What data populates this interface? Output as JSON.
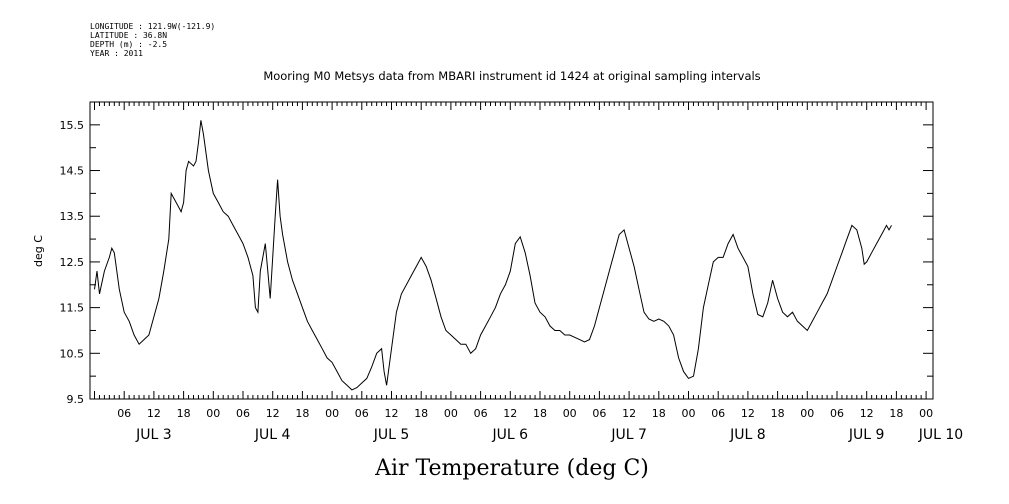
{
  "metadata": {
    "longitude": "LONGITUDE : 121.9W(-121.9)",
    "latitude": "LATITUDE : 36.8N",
    "depth": "DEPTH (m) : -2.5",
    "year": "YEAR : 2011"
  },
  "chart_data": {
    "type": "line",
    "title": "Mooring M0 Metsys data from MBARI instrument id 1424 at original sampling intervals",
    "xlabel": "Air Temperature (deg C)",
    "ylabel": "deg C",
    "ylim": [
      9.5,
      16.0
    ],
    "xlim_hours": [
      0,
      168
    ],
    "y_ticks": [
      "9.5",
      "10.5",
      "11.5",
      "12.5",
      "13.5",
      "14.5",
      "15.5"
    ],
    "x_hour_ticks": [
      {
        "h": 6,
        "label": "06"
      },
      {
        "h": 12,
        "label": "12"
      },
      {
        "h": 18,
        "label": "18"
      },
      {
        "h": 24,
        "label": "00"
      },
      {
        "h": 30,
        "label": "06"
      },
      {
        "h": 36,
        "label": "12"
      },
      {
        "h": 42,
        "label": "18"
      },
      {
        "h": 48,
        "label": "00"
      },
      {
        "h": 54,
        "label": "06"
      },
      {
        "h": 60,
        "label": "12"
      },
      {
        "h": 66,
        "label": "18"
      },
      {
        "h": 72,
        "label": "00"
      },
      {
        "h": 78,
        "label": "06"
      },
      {
        "h": 84,
        "label": "12"
      },
      {
        "h": 90,
        "label": "18"
      },
      {
        "h": 96,
        "label": "00"
      },
      {
        "h": 102,
        "label": "06"
      },
      {
        "h": 108,
        "label": "12"
      },
      {
        "h": 114,
        "label": "18"
      },
      {
        "h": 120,
        "label": "00"
      },
      {
        "h": 126,
        "label": "06"
      },
      {
        "h": 132,
        "label": "12"
      },
      {
        "h": 138,
        "label": "18"
      },
      {
        "h": 144,
        "label": "00"
      },
      {
        "h": 150,
        "label": "06"
      },
      {
        "h": 156,
        "label": "12"
      },
      {
        "h": 162,
        "label": "18"
      },
      {
        "h": 168,
        "label": "00"
      }
    ],
    "day_labels": [
      {
        "h": 12,
        "label": "JUL  3"
      },
      {
        "h": 36,
        "label": "JUL  4"
      },
      {
        "h": 60,
        "label": "JUL  5"
      },
      {
        "h": 84,
        "label": "JUL  6"
      },
      {
        "h": 108,
        "label": "JUL  7"
      },
      {
        "h": 132,
        "label": "JUL  8"
      },
      {
        "h": 156,
        "label": "JUL  9"
      },
      {
        "h": 171,
        "label": "JUL 10"
      }
    ],
    "series": [
      {
        "name": "Air Temperature",
        "points": [
          [
            0.0,
            11.9
          ],
          [
            0.5,
            12.3
          ],
          [
            1.0,
            11.8
          ],
          [
            2.0,
            12.3
          ],
          [
            3.0,
            12.6
          ],
          [
            3.5,
            12.8
          ],
          [
            4.0,
            12.7
          ],
          [
            5.0,
            11.9
          ],
          [
            6.0,
            11.4
          ],
          [
            7.0,
            11.2
          ],
          [
            8.0,
            10.9
          ],
          [
            9.0,
            10.7
          ],
          [
            10.0,
            10.8
          ],
          [
            11.0,
            10.9
          ],
          [
            12.0,
            11.3
          ],
          [
            13.0,
            11.7
          ],
          [
            14.0,
            12.3
          ],
          [
            15.0,
            13.0
          ],
          [
            15.5,
            14.0
          ],
          [
            16.0,
            13.9
          ],
          [
            17.0,
            13.7
          ],
          [
            17.5,
            13.6
          ],
          [
            18.0,
            13.8
          ],
          [
            18.5,
            14.5
          ],
          [
            19.0,
            14.7
          ],
          [
            20.0,
            14.6
          ],
          [
            20.5,
            14.7
          ],
          [
            21.0,
            15.1
          ],
          [
            21.5,
            15.6
          ],
          [
            22.0,
            15.3
          ],
          [
            23.0,
            14.5
          ],
          [
            24.0,
            14.0
          ],
          [
            25.0,
            13.8
          ],
          [
            26.0,
            13.6
          ],
          [
            27.0,
            13.5
          ],
          [
            28.0,
            13.3
          ],
          [
            29.0,
            13.1
          ],
          [
            30.0,
            12.9
          ],
          [
            31.0,
            12.6
          ],
          [
            32.0,
            12.2
          ],
          [
            32.5,
            11.5
          ],
          [
            33.0,
            11.4
          ],
          [
            33.5,
            12.3
          ],
          [
            34.0,
            12.6
          ],
          [
            34.5,
            12.9
          ],
          [
            35.0,
            12.3
          ],
          [
            35.5,
            11.7
          ],
          [
            36.0,
            12.6
          ],
          [
            36.5,
            13.5
          ],
          [
            37.0,
            14.3
          ],
          [
            37.5,
            13.5
          ],
          [
            38.0,
            13.1
          ],
          [
            39.0,
            12.5
          ],
          [
            40.0,
            12.1
          ],
          [
            41.0,
            11.8
          ],
          [
            42.0,
            11.5
          ],
          [
            43.0,
            11.2
          ],
          [
            44.0,
            11.0
          ],
          [
            45.0,
            10.8
          ],
          [
            46.0,
            10.6
          ],
          [
            47.0,
            10.4
          ],
          [
            48.0,
            10.3
          ],
          [
            49.0,
            10.1
          ],
          [
            50.0,
            9.9
          ],
          [
            51.0,
            9.8
          ],
          [
            52.0,
            9.7
          ],
          [
            53.0,
            9.75
          ],
          [
            54.0,
            9.85
          ],
          [
            55.0,
            9.95
          ],
          [
            56.0,
            10.2
          ],
          [
            57.0,
            10.5
          ],
          [
            58.0,
            10.6
          ],
          [
            58.5,
            10.1
          ],
          [
            59.0,
            9.8
          ],
          [
            60.0,
            10.6
          ],
          [
            61.0,
            11.4
          ],
          [
            62.0,
            11.8
          ],
          [
            63.0,
            12.0
          ],
          [
            64.0,
            12.2
          ],
          [
            65.0,
            12.4
          ],
          [
            66.0,
            12.6
          ],
          [
            67.0,
            12.4
          ],
          [
            68.0,
            12.1
          ],
          [
            69.0,
            11.7
          ],
          [
            70.0,
            11.3
          ],
          [
            71.0,
            11.0
          ],
          [
            72.0,
            10.9
          ],
          [
            73.0,
            10.8
          ],
          [
            74.0,
            10.7
          ],
          [
            75.0,
            10.7
          ],
          [
            76.0,
            10.5
          ],
          [
            77.0,
            10.6
          ],
          [
            78.0,
            10.9
          ],
          [
            79.0,
            11.1
          ],
          [
            80.0,
            11.3
          ],
          [
            81.0,
            11.5
          ],
          [
            82.0,
            11.8
          ],
          [
            83.0,
            12.0
          ],
          [
            84.0,
            12.3
          ],
          [
            85.0,
            12.9
          ],
          [
            86.0,
            13.05
          ],
          [
            87.0,
            12.7
          ],
          [
            88.0,
            12.2
          ],
          [
            89.0,
            11.6
          ],
          [
            90.0,
            11.4
          ],
          [
            91.0,
            11.3
          ],
          [
            92.0,
            11.1
          ],
          [
            93.0,
            11.0
          ],
          [
            94.0,
            11.0
          ],
          [
            95.0,
            10.9
          ],
          [
            96.0,
            10.9
          ],
          [
            97.0,
            10.85
          ],
          [
            98.0,
            10.8
          ],
          [
            99.0,
            10.75
          ],
          [
            100.0,
            10.8
          ],
          [
            101.0,
            11.1
          ],
          [
            102.0,
            11.5
          ],
          [
            103.0,
            11.9
          ],
          [
            104.0,
            12.3
          ],
          [
            105.0,
            12.7
          ],
          [
            106.0,
            13.1
          ],
          [
            107.0,
            13.2
          ],
          [
            108.0,
            12.8
          ],
          [
            109.0,
            12.4
          ],
          [
            110.0,
            11.9
          ],
          [
            111.0,
            11.4
          ],
          [
            112.0,
            11.25
          ],
          [
            113.0,
            11.2
          ],
          [
            114.0,
            11.25
          ],
          [
            115.0,
            11.2
          ],
          [
            116.0,
            11.1
          ],
          [
            117.0,
            10.9
          ],
          [
            118.0,
            10.4
          ],
          [
            119.0,
            10.1
          ],
          [
            120.0,
            9.95
          ],
          [
            121.0,
            10.0
          ],
          [
            122.0,
            10.6
          ],
          [
            123.0,
            11.5
          ],
          [
            124.0,
            12.0
          ],
          [
            125.0,
            12.5
          ],
          [
            126.0,
            12.6
          ],
          [
            127.0,
            12.6
          ],
          [
            128.0,
            12.9
          ],
          [
            129.0,
            13.1
          ],
          [
            130.0,
            12.8
          ],
          [
            131.0,
            12.6
          ],
          [
            132.0,
            12.4
          ],
          [
            133.0,
            11.8
          ],
          [
            134.0,
            11.35
          ],
          [
            135.0,
            11.3
          ],
          [
            136.0,
            11.6
          ],
          [
            137.0,
            12.1
          ],
          [
            138.0,
            11.7
          ],
          [
            139.0,
            11.4
          ],
          [
            140.0,
            11.3
          ],
          [
            141.0,
            11.4
          ],
          [
            142.0,
            11.2
          ],
          [
            143.0,
            11.1
          ],
          [
            144.0,
            11.0
          ],
          [
            145.0,
            11.2
          ],
          [
            146.0,
            11.4
          ],
          [
            147.0,
            11.6
          ],
          [
            148.0,
            11.8
          ],
          [
            149.0,
            12.1
          ],
          [
            150.0,
            12.4
          ],
          [
            151.0,
            12.7
          ],
          [
            152.0,
            13.0
          ],
          [
            153.0,
            13.3
          ],
          [
            154.0,
            13.2
          ],
          [
            155.0,
            12.8
          ],
          [
            155.5,
            12.45
          ],
          [
            156.0,
            12.5
          ],
          [
            157.0,
            12.7
          ],
          [
            158.0,
            12.9
          ],
          [
            159.0,
            13.1
          ],
          [
            160.0,
            13.3
          ],
          [
            160.5,
            13.2
          ],
          [
            161.0,
            13.3
          ]
        ]
      }
    ]
  }
}
